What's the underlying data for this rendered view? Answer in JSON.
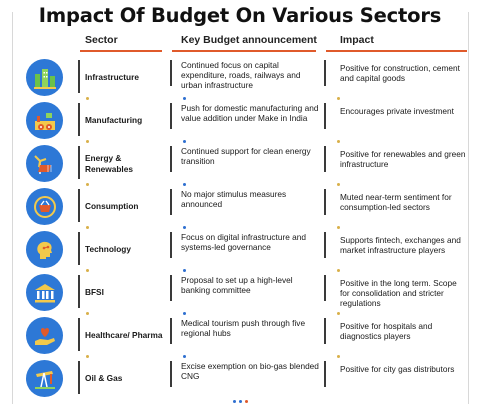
{
  "title": "Impact Of Budget On Various Sectors",
  "headers": {
    "sector": "Sector",
    "announcement": "Key Budget announcement",
    "impact": "Impact"
  },
  "colors": {
    "accent_rule": "#e05a2b",
    "icon_bg": "#2d78d6",
    "dot_gold": "#d9b04a",
    "dot_blue": "#2f6fd0"
  },
  "rows": [
    {
      "icon": "city-buildings-icon",
      "sector": "Infrastructure",
      "announcement": "Continued focus on capital expenditure, roads, railways and urban infrastructure",
      "impact": "Positive for construction, cement and capital goods"
    },
    {
      "icon": "factory-gears-icon",
      "sector": "Manufacturing",
      "announcement": "Push for domestic manufacturing and value addition under Make in India",
      "impact": "Encourages private investment"
    },
    {
      "icon": "wind-solar-energy-icon",
      "sector": "Energy & Renewables",
      "announcement": "Continued support for clean energy transition",
      "impact": "Positive for renewables and green infrastructure"
    },
    {
      "icon": "shopping-basket-icon",
      "sector": "Consumption",
      "announcement": "No major stimulus measures announced",
      "impact": "Muted near-term sentiment for consumption-led sectors"
    },
    {
      "icon": "tech-head-circuit-icon",
      "sector": "Technology",
      "announcement": "Focus on digital infrastructure and systems-led governance",
      "impact": "Supports fintech, exchanges and market infrastructure players"
    },
    {
      "icon": "bank-building-icon",
      "sector": "BFSI",
      "announcement": "Proposal to set up a high-level banking committee",
      "impact": "Positive in the long term. Scope for consolidation and stricter regulations"
    },
    {
      "icon": "hand-heart-care-icon",
      "sector": "Healthcare/ Pharma",
      "announcement": "Medical tourism push through five regional hubs",
      "impact": "Positive for hospitals and diagnostics players"
    },
    {
      "icon": "oil-pump-jack-icon",
      "sector": "Oil & Gas",
      "announcement": "Excise exemption on bio-gas blended CNG",
      "impact": "Positive for city gas distributors"
    }
  ]
}
